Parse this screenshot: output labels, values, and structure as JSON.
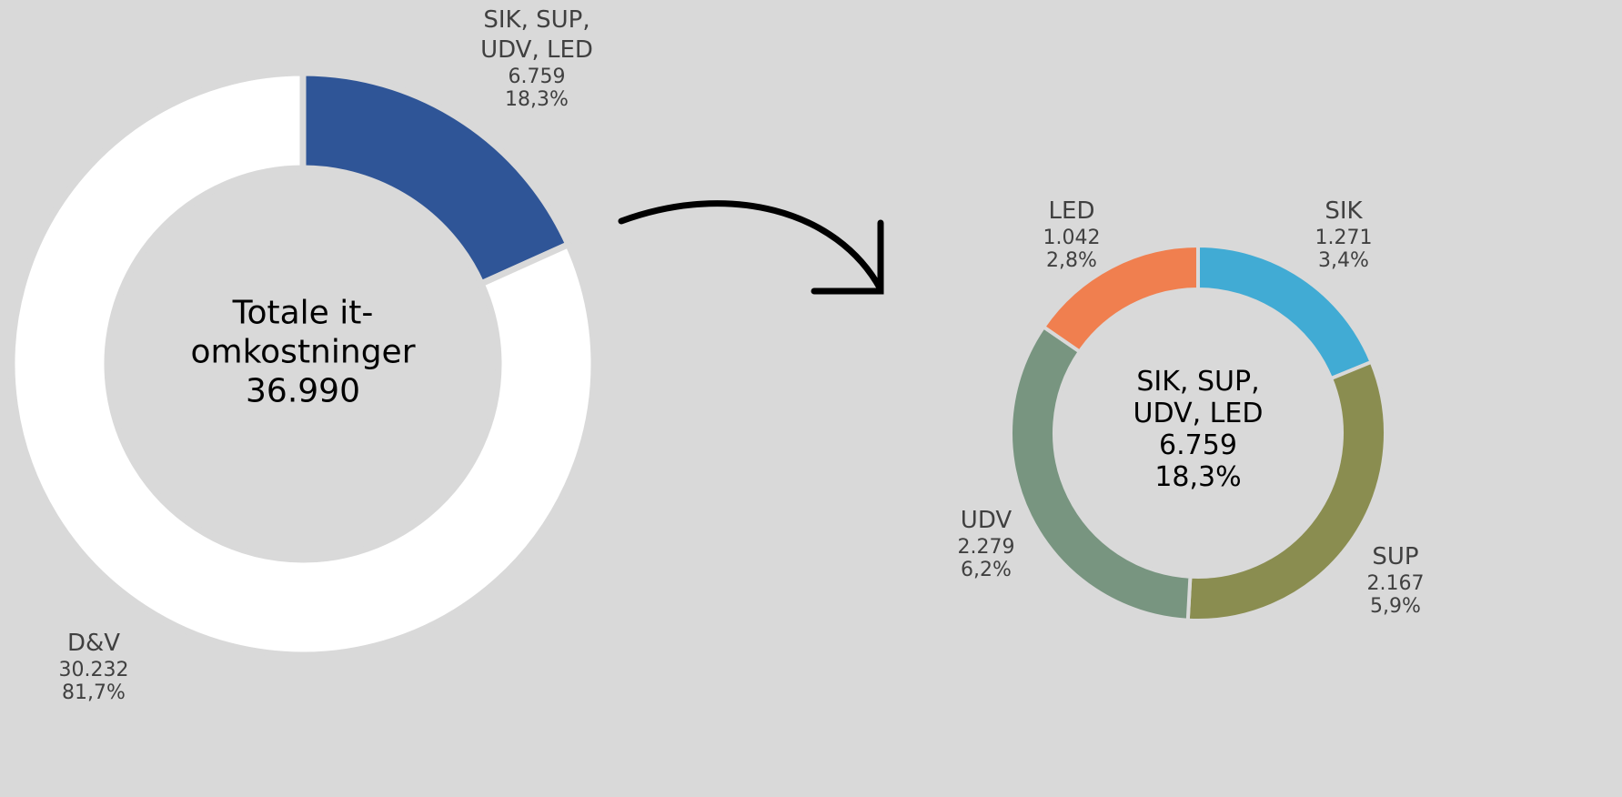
{
  "chart_data": [
    {
      "type": "donut",
      "center_label": "Totale it-omkostninger",
      "center_value_label": "36.990",
      "categories": [
        "SIK, SUP, UDV, LED",
        "D&V"
      ],
      "values": [
        6759,
        30232
      ],
      "value_labels": [
        "6.759",
        "30.232"
      ],
      "percents": [
        18.3,
        81.7
      ],
      "percent_labels": [
        "18,3%",
        "81,7%"
      ],
      "colors": [
        "#2f5597",
        "#ffffff"
      ]
    },
    {
      "type": "donut",
      "center_label": "SIK, SUP, UDV, LED",
      "center_value_label": "6.759",
      "center_percent_label": "18,3%",
      "categories": [
        "SIK",
        "SUP",
        "UDV",
        "LED"
      ],
      "values": [
        1271,
        2167,
        2279,
        1042
      ],
      "value_labels": [
        "1.271",
        "2.167",
        "2.279",
        "1.042"
      ],
      "percents": [
        3.4,
        5.9,
        6.2,
        2.8
      ],
      "percent_labels": [
        "3,4%",
        "5,9%",
        "6,2%",
        "2,8%"
      ],
      "colors": [
        "#41abd4",
        "#8a8d50",
        "#789580",
        "#f07f4f"
      ]
    }
  ]
}
